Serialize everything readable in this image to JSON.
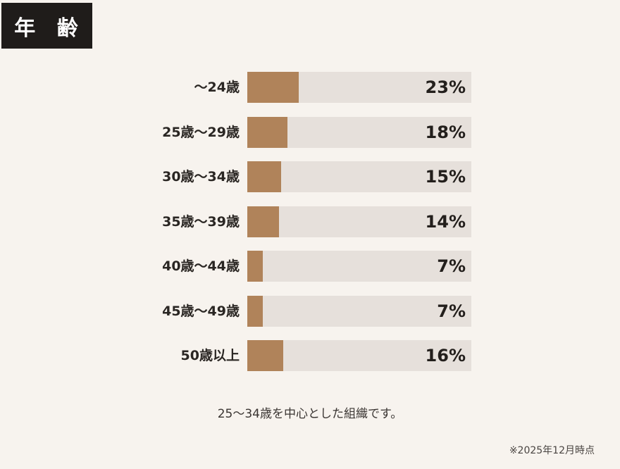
{
  "header": {
    "title": "年 齢"
  },
  "chart_data": {
    "type": "bar",
    "orientation": "horizontal",
    "title": "年齢",
    "categories": [
      "〜24歳",
      "25歳〜29歳",
      "30歳〜34歳",
      "35歳〜39歳",
      "40歳〜44歳",
      "45歳〜49歳",
      "50歳以上"
    ],
    "values": [
      23,
      18,
      15,
      14,
      7,
      7,
      16
    ],
    "value_labels": [
      "23%",
      "18%",
      "15%",
      "14%",
      "7%",
      "7%",
      "16%"
    ],
    "xlabel": "",
    "ylabel": "",
    "xlim": [
      0,
      100
    ],
    "unit": "%",
    "grid": false,
    "legend": null,
    "colors": {
      "fill": "#b0835a",
      "track": "#e6e0db"
    }
  },
  "rows": [
    {
      "label": "〜24歳",
      "pct_label": "23%",
      "value": 23
    },
    {
      "label": "25歳〜29歳",
      "pct_label": "18%",
      "value": 18
    },
    {
      "label": "30歳〜34歳",
      "pct_label": "15%",
      "value": 15
    },
    {
      "label": "35歳〜39歳",
      "pct_label": "14%",
      "value": 14
    },
    {
      "label": "40歳〜44歳",
      "pct_label": "7%",
      "value": 7
    },
    {
      "label": "45歳〜49歳",
      "pct_label": "7%",
      "value": 7
    },
    {
      "label": "50歳以上",
      "pct_label": "16%",
      "value": 16
    }
  ],
  "note": "25〜34歳を中心とした組織です。",
  "footnote": "※2025年12月時点"
}
